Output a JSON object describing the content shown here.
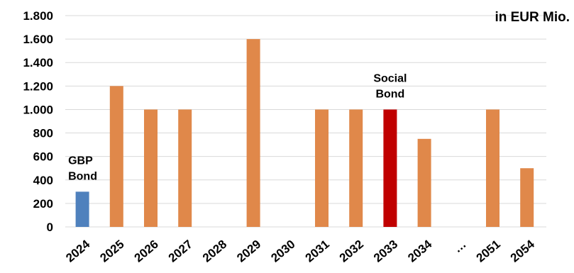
{
  "chart_data": {
    "type": "bar",
    "unit_label": "in EUR Mio.",
    "categories": [
      "2024",
      "2025",
      "2026",
      "2027",
      "2028",
      "2029",
      "2030",
      "2031",
      "2032",
      "2033",
      "2034",
      "...",
      "2051",
      "2054"
    ],
    "values": [
      300,
      1200,
      1000,
      1000,
      0,
      1600,
      0,
      1000,
      1000,
      1000,
      750,
      0,
      1000,
      500
    ],
    "bar_colors": [
      "#4f81bd",
      "#e0884a",
      "#e0884a",
      "#e0884a",
      "#e0884a",
      "#e0884a",
      "#e0884a",
      "#e0884a",
      "#e0884a",
      "#c00000",
      "#e0884a",
      "#e0884a",
      "#e0884a",
      "#e0884a"
    ],
    "ylim": [
      0,
      1800
    ],
    "yticks": [
      0,
      200,
      400,
      600,
      800,
      1000,
      1200,
      1400,
      1600,
      1800
    ],
    "ytick_labels": [
      "0",
      "200",
      "400",
      "600",
      "800",
      "1.000",
      "1.200",
      "1.400",
      "1.600",
      "1.800"
    ],
    "grid": true,
    "annotations": [
      {
        "category": "2024",
        "lines": [
          "GBP",
          "Bond"
        ]
      },
      {
        "category": "2033",
        "lines": [
          "Social",
          "Bond"
        ]
      }
    ]
  }
}
